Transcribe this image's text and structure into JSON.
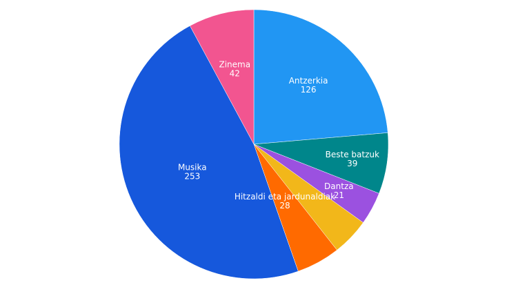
{
  "chart_data": {
    "type": "pie",
    "slices": [
      {
        "label": "Antzerkia",
        "value": 126,
        "color": "#2196f3"
      },
      {
        "label": "Beste batzuk",
        "value": 39,
        "color": "#00868b"
      },
      {
        "label": "Dantza",
        "value": 21,
        "color": "#9b51e0"
      },
      {
        "label": "",
        "value": 24,
        "color": "#f2b71a"
      },
      {
        "label": "Hitzaldi eta jardunaldiak",
        "value": 28,
        "color": "#ff6a00"
      },
      {
        "label": "Musika",
        "value": 253,
        "color": "#1658dc"
      },
      {
        "label": "Zinema",
        "value": 42,
        "color": "#f25590"
      }
    ],
    "start": "12 o'clock",
    "direction": "clockwise",
    "legend": "none"
  }
}
